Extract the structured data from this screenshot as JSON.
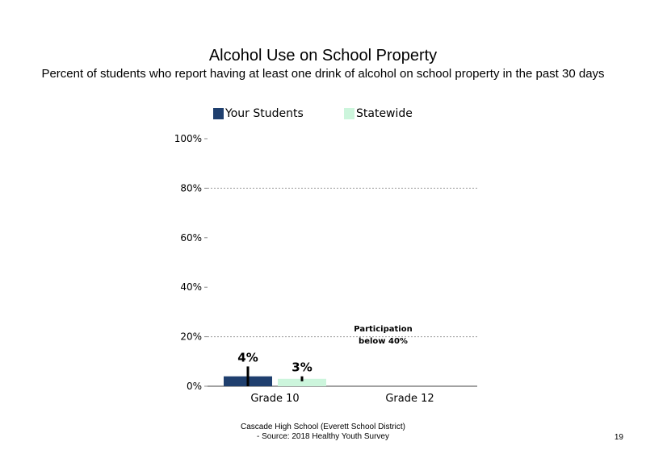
{
  "chart_data": {
    "type": "bar",
    "title": "Alcohol Use on School Property",
    "subtitle": "Percent of students who report having at least one drink of alcohol on school property in the past 30 days",
    "categories": [
      "Grade 10",
      "Grade 12"
    ],
    "series": [
      {
        "name": "Your Students",
        "values": [
          4,
          null
        ],
        "error_bars": [
          [
            0,
            8
          ],
          null
        ],
        "data_labels": [
          "4%",
          ""
        ],
        "color": "#1f3f6e"
      },
      {
        "name": "Statewide",
        "values": [
          3,
          null
        ],
        "error_bars": [
          [
            2,
            4
          ],
          null
        ],
        "data_labels": [
          "3%",
          ""
        ],
        "color": "#ccf5dc"
      }
    ],
    "ylim": [
      0,
      100
    ],
    "y_ticks": [
      "0%",
      "20%",
      "40%",
      "60%",
      "80%",
      "100%"
    ],
    "y_tick_values": [
      0,
      20,
      40,
      60,
      80,
      100
    ],
    "gridlines": [
      20,
      80
    ],
    "legend_position": "top",
    "annotation": {
      "line1": "Participation",
      "line2": "below 40%",
      "category": "Grade 12"
    }
  },
  "footer": {
    "line1": "Cascade High School (Everett School District)",
    "line2": "- Source: 2018 Healthy Youth Survey"
  },
  "page_number": "19"
}
